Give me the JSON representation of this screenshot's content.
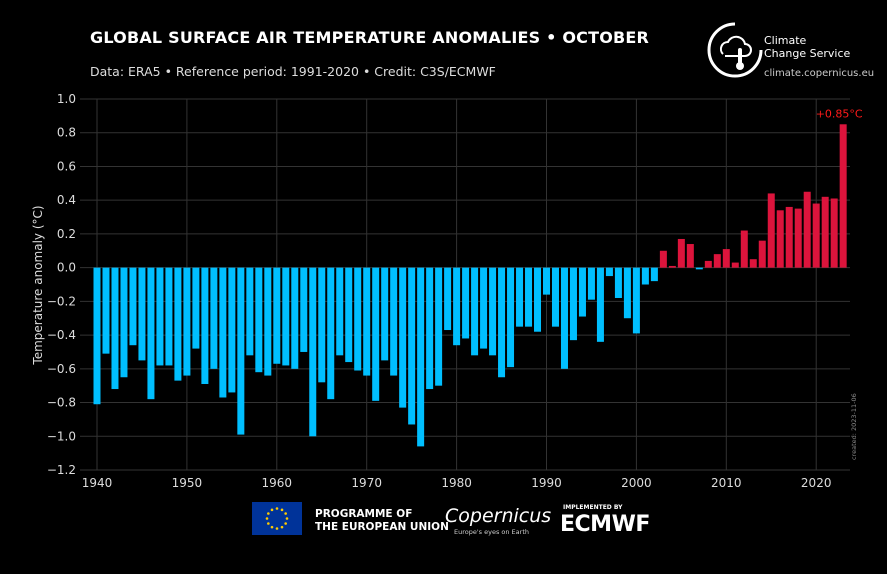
{
  "header": {
    "title": "GLOBAL SURFACE AIR TEMPERATURE ANOMALIES • OCTOBER",
    "subtitle": "Data: ERA5 • Reference period: 1991-2020 • Credit: C3S/ECMWF"
  },
  "brand": {
    "name_line1": "Climate",
    "name_line2": "Change Service",
    "url": "climate.copernicus.eu"
  },
  "footer": {
    "eu_line1": "PROGRAMME OF",
    "eu_line2": "THE EUROPEAN UNION",
    "copernicus": "Copernicus",
    "copernicus_tagline": "Europe's eyes on Earth",
    "implemented_by": "IMPLEMENTED BY",
    "ecmwf": "ECMWF"
  },
  "created": "created: 2023-11-06",
  "colors": {
    "negative": "#00bfff",
    "positive": "#dc143c",
    "annotation": "#ff1a1a",
    "grid": "#333333"
  },
  "chart_data": {
    "type": "bar",
    "title": "GLOBAL SURFACE AIR TEMPERATURE ANOMALIES • OCTOBER",
    "xlabel": "",
    "ylabel": "Temperature anomaly (°C)",
    "ylim": [
      -1.2,
      1.0
    ],
    "xlim": [
      1939,
      2024
    ],
    "grid": true,
    "yticks": [
      "1.0",
      "0.8",
      "0.6",
      "0.4",
      "0.2",
      "0.0",
      "−0.2",
      "−0.4",
      "−0.6",
      "−0.8",
      "−1.0",
      "−1.2"
    ],
    "ytick_values": [
      1.0,
      0.8,
      0.6,
      0.4,
      0.2,
      0.0,
      -0.2,
      -0.4,
      -0.6,
      -0.8,
      -1.0,
      -1.2
    ],
    "xticks": [
      "1940",
      "1950",
      "1960",
      "1970",
      "1980",
      "1990",
      "2000",
      "2010",
      "2020"
    ],
    "annotation": "+0.85°C",
    "x_start": 1940,
    "values": [
      -0.81,
      -0.51,
      -0.72,
      -0.65,
      -0.46,
      -0.55,
      -0.78,
      -0.58,
      -0.58,
      -0.67,
      -0.64,
      -0.48,
      -0.69,
      -0.6,
      -0.77,
      -0.74,
      -0.99,
      -0.52,
      -0.62,
      -0.64,
      -0.57,
      -0.58,
      -0.6,
      -0.5,
      -1.0,
      -0.68,
      -0.78,
      -0.52,
      -0.56,
      -0.61,
      -0.64,
      -0.79,
      -0.55,
      -0.64,
      -0.83,
      -0.93,
      -1.06,
      -0.72,
      -0.7,
      -0.37,
      -0.46,
      -0.42,
      -0.52,
      -0.48,
      -0.52,
      -0.65,
      -0.59,
      -0.35,
      -0.35,
      -0.38,
      -0.16,
      -0.35,
      -0.6,
      -0.43,
      -0.29,
      -0.19,
      -0.44,
      -0.05,
      -0.18,
      -0.3,
      -0.39,
      -0.1,
      -0.08,
      0.1,
      0.01,
      0.17,
      0.14,
      -0.01,
      0.04,
      0.08,
      0.11,
      0.03,
      0.22,
      0.05,
      0.16,
      0.44,
      0.34,
      0.36,
      0.35,
      0.45,
      0.38,
      0.42,
      0.41,
      0.85
    ]
  }
}
